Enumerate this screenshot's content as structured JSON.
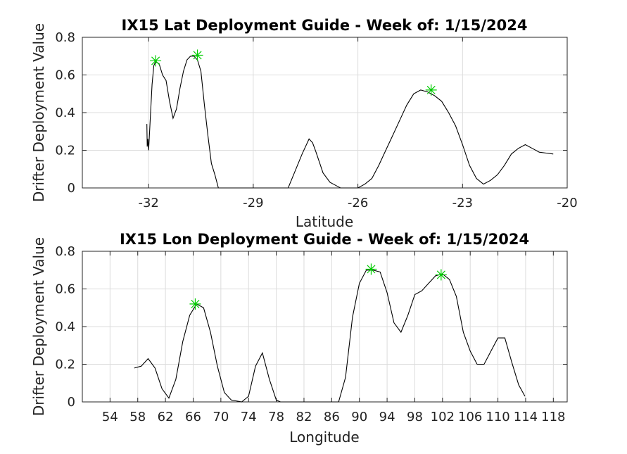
{
  "figure": {
    "background": "#ffffff",
    "line_color": "#000000",
    "marker_color": "#00cc00",
    "grid_color": "#dcdcdc"
  },
  "chart_data": [
    {
      "type": "line",
      "title": "IX15 Lat Deployment Guide - Week of: 1/15/2024",
      "xlabel": "Latitude",
      "ylabel": "Drifter Deployment Value",
      "xlim": [
        -33.9,
        -20
      ],
      "ylim": [
        0,
        0.8
      ],
      "xticks": [
        -32,
        -29,
        -26,
        -23,
        -20
      ],
      "yticks": [
        0,
        0.2,
        0.4,
        0.6,
        0.8
      ],
      "grid": true,
      "series": [
        {
          "x": [
            -32.05,
            -32.04,
            -32.02,
            -32.0,
            -31.95,
            -31.9,
            -31.85,
            -31.8,
            -31.7,
            -31.6,
            -31.5,
            -31.4,
            -31.3,
            -31.2,
            -31.1,
            -31.0,
            -30.9,
            -30.8,
            -30.7,
            -30.6,
            -30.5,
            -30.4,
            -30.3,
            -30.2,
            -30.1,
            -30.0,
            -29.9,
            -29.5,
            -29.0,
            -28.5,
            -28.0,
            -27.8,
            -27.6,
            -27.4,
            -27.3,
            -27.2,
            -27.0,
            -26.8,
            -26.6,
            -26.5,
            -26.3,
            -26.0,
            -25.8,
            -25.6,
            -25.4,
            -25.2,
            -25.0,
            -24.8,
            -24.6,
            -24.4,
            -24.2,
            -24.0,
            -23.8,
            -23.6,
            -23.4,
            -23.2,
            -23.0,
            -22.8,
            -22.6,
            -22.4,
            -22.2,
            -22.0,
            -21.8,
            -21.6,
            -21.4,
            -21.2,
            -21.0,
            -20.8,
            -20.6,
            -20.4
          ],
          "y": [
            0.34,
            0.22,
            0.26,
            0.2,
            0.38,
            0.55,
            0.65,
            0.67,
            0.66,
            0.6,
            0.57,
            0.46,
            0.37,
            0.42,
            0.53,
            0.62,
            0.68,
            0.7,
            0.7,
            0.68,
            0.62,
            0.44,
            0.28,
            0.13,
            0.07,
            0.0,
            0.0,
            0.0,
            0.0,
            0.0,
            0.0,
            0.09,
            0.18,
            0.26,
            0.24,
            0.19,
            0.08,
            0.03,
            0.01,
            0.0,
            0.0,
            0.0,
            0.02,
            0.05,
            0.12,
            0.2,
            0.28,
            0.36,
            0.44,
            0.5,
            0.52,
            0.51,
            0.49,
            0.46,
            0.4,
            0.33,
            0.23,
            0.12,
            0.05,
            0.02,
            0.04,
            0.07,
            0.12,
            0.18,
            0.21,
            0.23,
            0.21,
            0.19,
            0.185,
            0.18
          ],
          "markers": [
            {
              "x": -31.8,
              "y": 0.675
            },
            {
              "x": -30.6,
              "y": 0.705
            },
            {
              "x": -23.9,
              "y": 0.52
            }
          ]
        }
      ]
    },
    {
      "type": "line",
      "title": "IX15 Lon Deployment Guide - Week of: 1/15/2024",
      "xlabel": "Longitude",
      "ylabel": "Drifter Deployment Value",
      "xlim": [
        50,
        120
      ],
      "ylim": [
        0,
        0.8
      ],
      "xticks": [
        54,
        58,
        62,
        66,
        70,
        74,
        78,
        82,
        86,
        90,
        94,
        98,
        102,
        106,
        110,
        114,
        118
      ],
      "yticks": [
        0,
        0.2,
        0.4,
        0.6,
        0.8
      ],
      "grid": true,
      "series": [
        {
          "x": [
            57.5,
            58.5,
            59.5,
            60.5,
            61.5,
            62.5,
            63.5,
            64.5,
            65.5,
            66.5,
            67.5,
            68.5,
            69.5,
            70.5,
            71.5,
            73.0,
            74.0,
            75.0,
            76.0,
            77.0,
            78.0,
            78.6,
            80.0,
            84.0,
            87.0,
            88.0,
            89.0,
            90.0,
            91.0,
            92.0,
            93.0,
            94.0,
            95.0,
            96.0,
            97.0,
            98.0,
            99.0,
            100.0,
            101.0,
            102.0,
            103.0,
            104.0,
            105.0,
            106.0,
            107.0,
            108.0,
            109.0,
            110.0,
            111.0,
            112.0,
            113.0,
            113.9
          ],
          "y": [
            0.18,
            0.19,
            0.23,
            0.18,
            0.07,
            0.02,
            0.12,
            0.32,
            0.46,
            0.52,
            0.5,
            0.37,
            0.19,
            0.05,
            0.01,
            0.0,
            0.03,
            0.19,
            0.26,
            0.12,
            0.01,
            0.0,
            0.0,
            0.0,
            0.0,
            0.13,
            0.45,
            0.63,
            0.7,
            0.7,
            0.69,
            0.58,
            0.42,
            0.37,
            0.46,
            0.57,
            0.59,
            0.63,
            0.67,
            0.68,
            0.65,
            0.56,
            0.37,
            0.27,
            0.2,
            0.2,
            0.27,
            0.34,
            0.34,
            0.21,
            0.09,
            0.03
          ],
          "markers": [
            {
              "x": 66.3,
              "y": 0.52
            },
            {
              "x": 91.7,
              "y": 0.705
            },
            {
              "x": 101.8,
              "y": 0.675
            }
          ]
        }
      ]
    }
  ]
}
